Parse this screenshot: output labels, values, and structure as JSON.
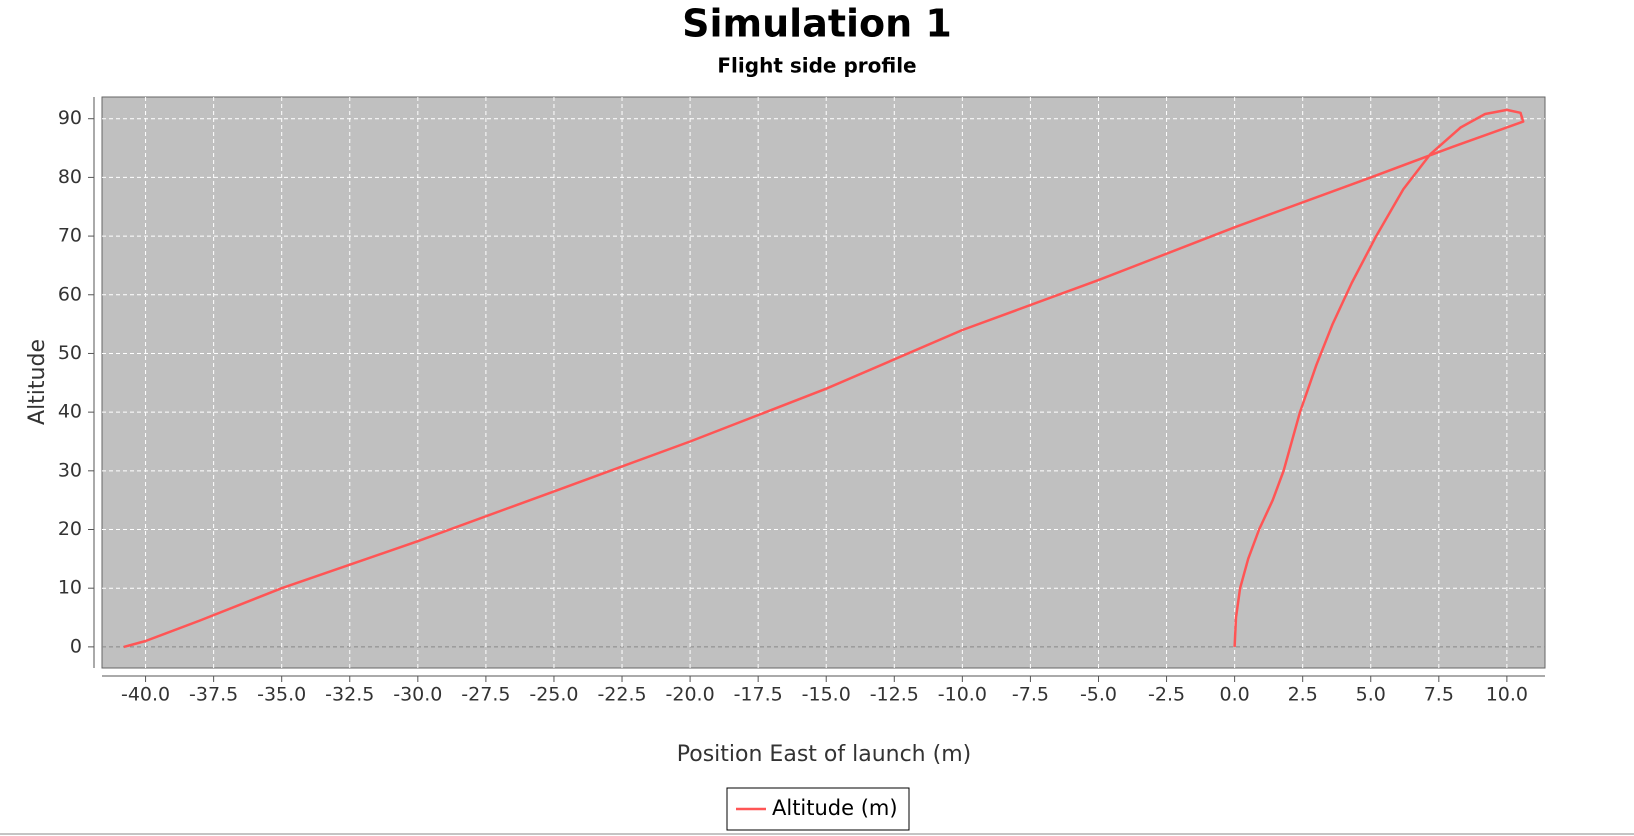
{
  "chart_data": {
    "type": "line",
    "title": "Simulation 1",
    "subtitle": "Flight side profile",
    "x_label": "Position East of launch (m)",
    "y_label": "Altitude",
    "x": [
      0,
      0.05,
      0.2,
      0.5,
      0.9,
      1.4,
      1.8,
      2.4,
      3.0,
      3.6,
      4.3,
      5.2,
      6.2,
      7.2,
      8.3,
      9.2,
      10.0,
      10.5,
      10.6,
      8.0,
      5.0,
      0.0,
      -5.0,
      -10.0,
      -15.0,
      -20.0,
      -25.0,
      -30.0,
      -35.0,
      -38.0,
      -40.0,
      -40.8
    ],
    "series": [
      {
        "name": "Altitude (m)",
        "color": "#ff5555",
        "values": [
          0,
          5,
          10,
          15,
          20,
          25,
          30,
          40,
          48,
          55,
          62,
          70,
          78,
          84,
          88.5,
          90.8,
          91.5,
          91,
          89.5,
          85.2,
          80,
          71.5,
          62.5,
          54,
          44,
          35,
          26.5,
          18,
          10,
          4.5,
          1,
          0
        ]
      }
    ],
    "xlim": [
      -41.6,
      11.4
    ],
    "ylim": [
      -3.6,
      93.7
    ],
    "xticks": [
      {
        "value": -40,
        "label": "-40.0"
      },
      -37.5,
      {
        "value": -35,
        "label": "-35.0"
      },
      -32.5,
      {
        "value": -30,
        "label": "-30.0"
      },
      -27.5,
      {
        "value": -25,
        "label": "-25.0"
      },
      -22.5,
      {
        "value": -20,
        "label": "-20.0"
      },
      -17.5,
      {
        "value": -15,
        "label": "-15.0"
      },
      -12.5,
      {
        "value": -10,
        "label": "-10.0"
      },
      -7.5,
      {
        "value": -5,
        "label": "-5.0"
      },
      -2.5,
      {
        "value": 0,
        "label": "0.0"
      },
      2.5,
      {
        "value": 5,
        "label": "5.0"
      },
      7.5,
      {
        "value": 10,
        "label": "10.0"
      }
    ],
    "yticks": [
      0,
      10,
      20,
      30,
      40,
      50,
      60,
      70,
      80,
      90
    ],
    "grid": true
  }
}
